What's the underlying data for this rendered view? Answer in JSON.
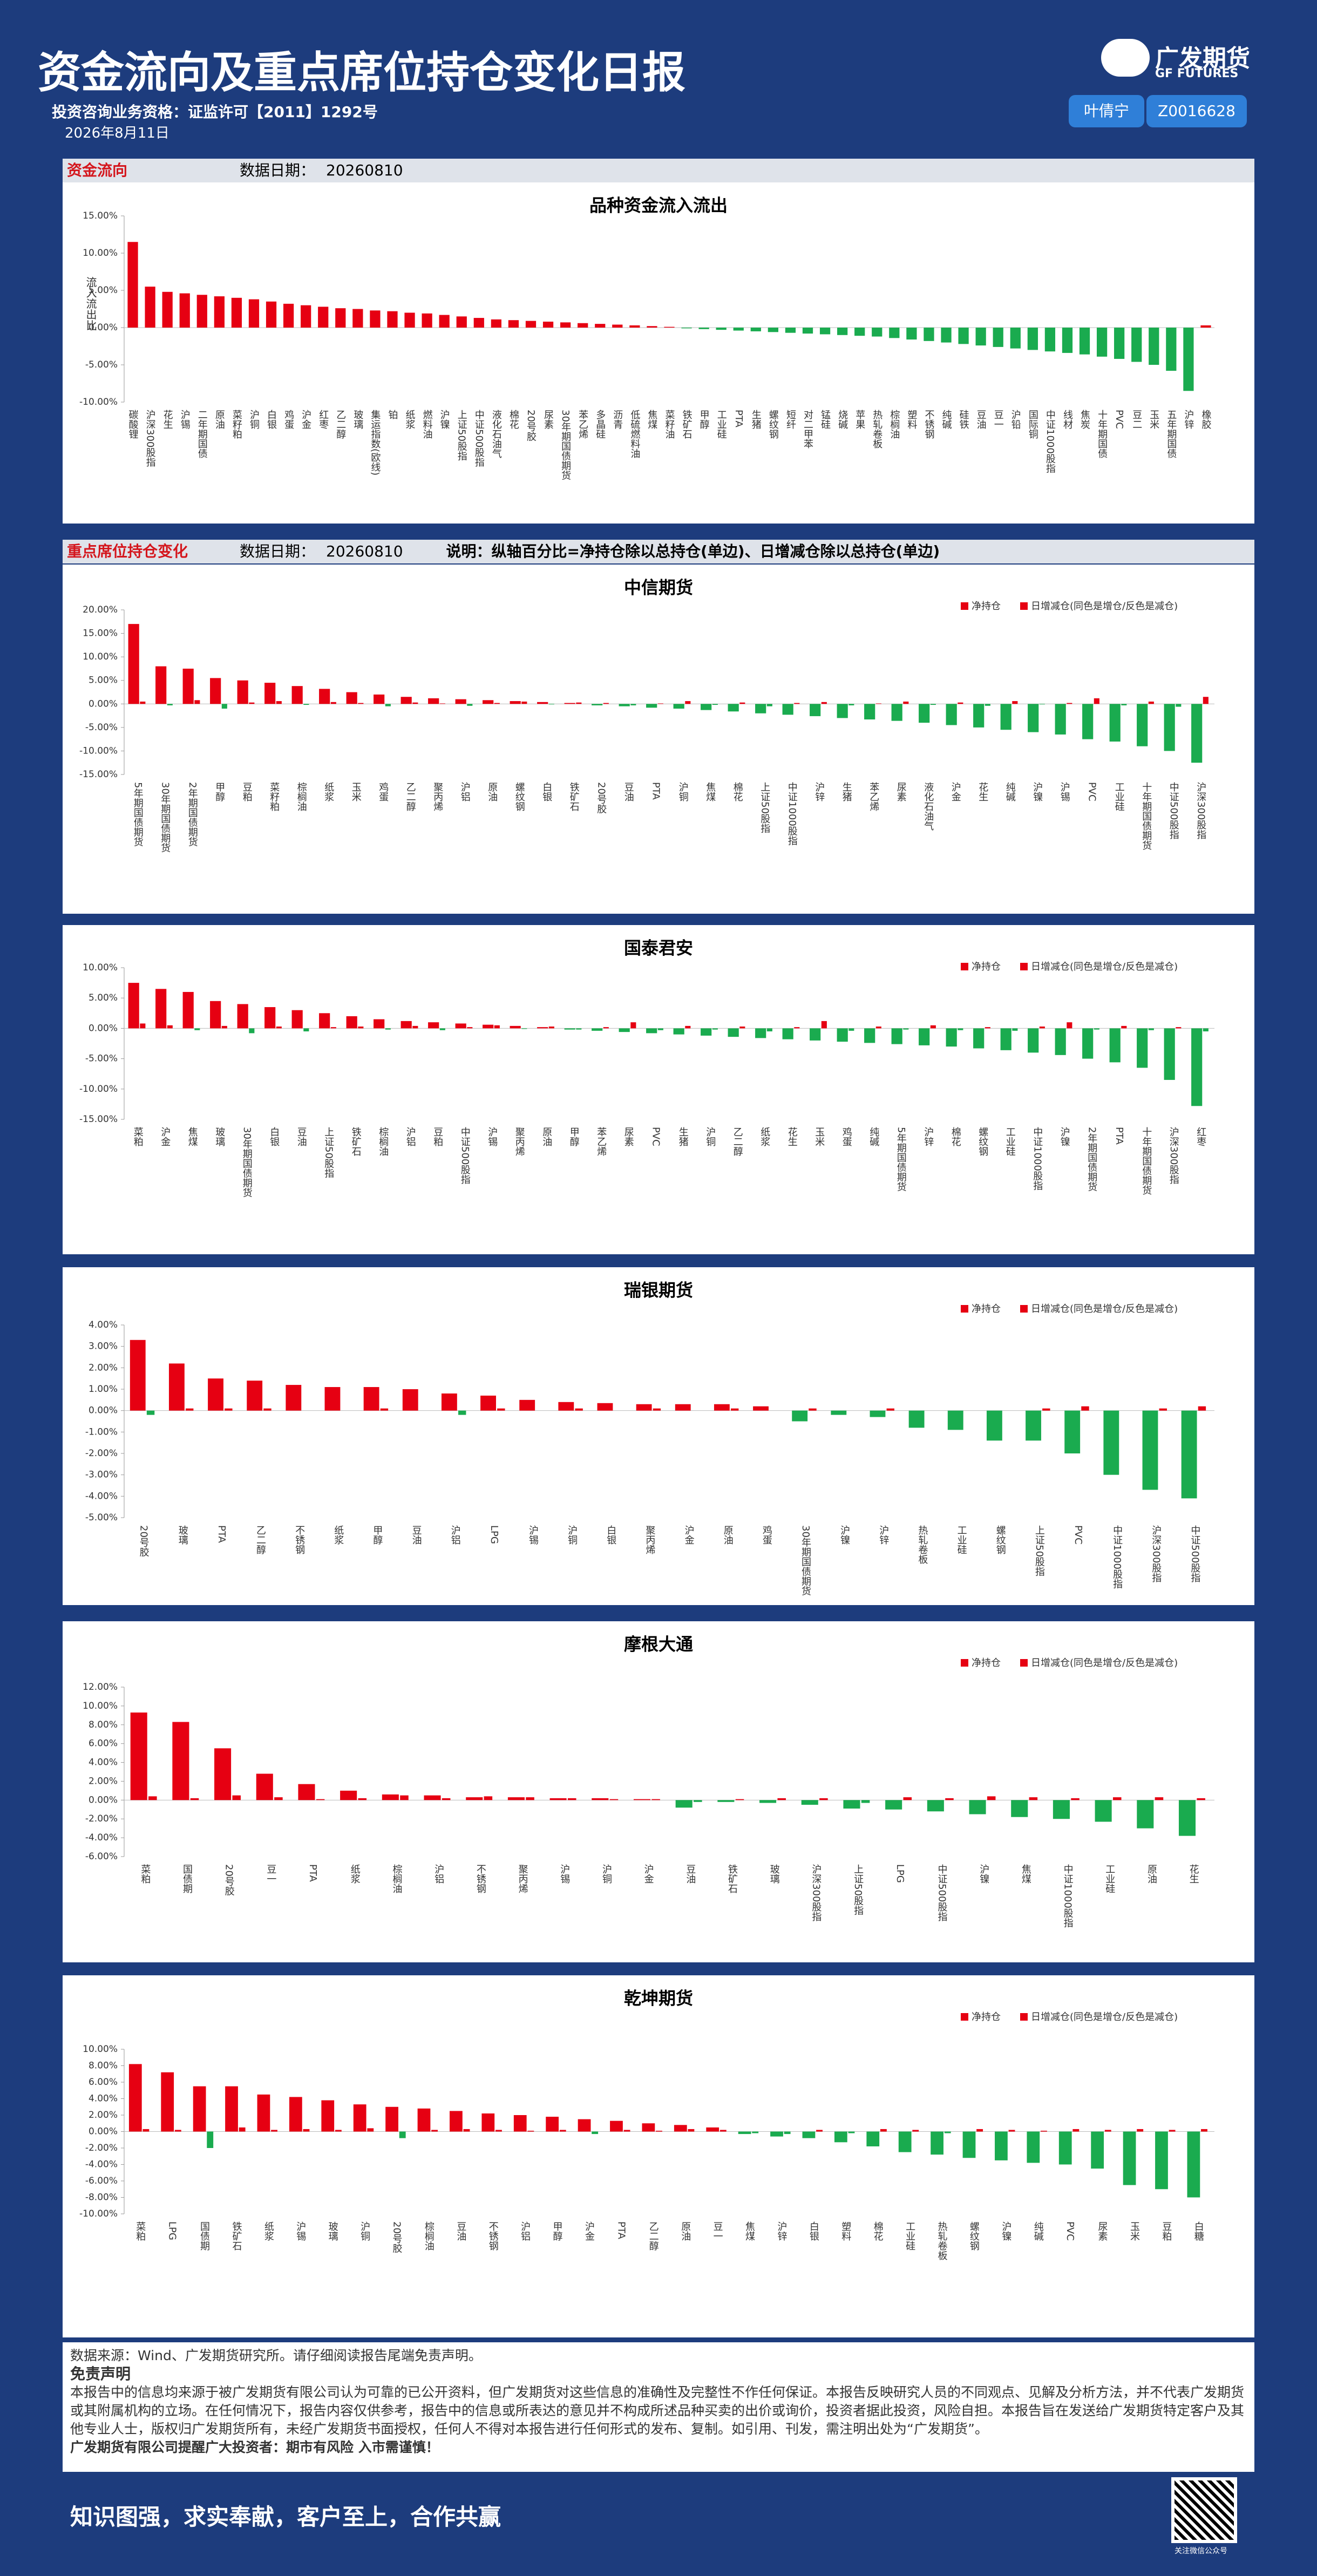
{
  "header": {
    "title": "资金流向及重点席位持仓变化日报",
    "license": "投资咨询业务资格：证监许可【2011】1292号",
    "date": "2026年8月11日",
    "logo_cn": "广发期货",
    "logo_en": "GF FUTURES",
    "analyst": "叶倩宁",
    "analyst_id": "Z0016628"
  },
  "sections": [
    {
      "name": "资金流向",
      "date_label": "数据日期：",
      "date": "20260810"
    },
    {
      "name": "重点席位持仓变化",
      "date_label": "数据日期：",
      "date": "20260810",
      "note": "说明：纵轴百分比=净持仓除以总持仓(单边)、日增减仓除以总持仓(单边)"
    }
  ],
  "chart_data": [
    {
      "type": "bar",
      "title": "品种资金流入流出",
      "ylabel": "流入流出比",
      "positive_color": "#e60012",
      "negative_color": "#1aab4f",
      "categories": [
        "碳酸锂",
        "沪深300股指",
        "花生",
        "沪锡",
        "二年期国债",
        "原油",
        "菜籽粕",
        "沪铜",
        "白银",
        "鸡蛋",
        "沪金",
        "红枣",
        "乙二醇",
        "玻璃",
        "集运指数(欧线)",
        "铂",
        "纸浆",
        "燃料油",
        "沪镍",
        "上证50股指",
        "中证500股指",
        "液化石油气",
        "棉花",
        "20号胶",
        "尿素",
        "30年期国债期货",
        "苯乙烯",
        "多晶硅",
        "沥青",
        "低硫燃料油",
        "焦煤",
        "菜籽油",
        "铁矿石",
        "甲醇",
        "工业硅",
        "PTA",
        "生猪",
        "螺纹钢",
        "短纤",
        "对二甲苯",
        "锰硅",
        "烧碱",
        "苹果",
        "热轧卷板",
        "棕榈油",
        "塑料",
        "不锈钢",
        "纯碱",
        "硅铁",
        "豆油",
        "豆一",
        "沪铅",
        "国际铜",
        "中证1000股指",
        "线材",
        "焦炭",
        "十年期国债",
        "PVC",
        "豆二",
        "玉米",
        "五年期国债",
        "沪锌",
        "橡胶"
      ],
      "values": [
        11.5,
        5.5,
        4.8,
        4.6,
        4.4,
        4.2,
        4.0,
        3.8,
        3.5,
        3.2,
        3.0,
        2.8,
        2.6,
        2.5,
        2.3,
        2.2,
        2.0,
        1.9,
        1.7,
        1.5,
        1.3,
        1.1,
        1.0,
        0.9,
        0.8,
        0.7,
        0.6,
        0.5,
        0.4,
        0.3,
        0.2,
        0.1,
        -0.1,
        -0.2,
        -0.3,
        -0.4,
        -0.5,
        -0.6,
        -0.7,
        -0.8,
        -0.9,
        -1.0,
        -1.1,
        -1.2,
        -1.4,
        -1.6,
        -1.8,
        -2.0,
        -2.2,
        -2.4,
        -2.6,
        -2.8,
        -3.0,
        -3.2,
        -3.4,
        -3.6,
        -3.9,
        -4.2,
        -4.6,
        -5.0,
        -5.8,
        -8.5,
        0.3
      ],
      "ylim": [
        -10,
        15
      ],
      "yticks": [
        {
          "value": -10,
          "label": "-10.00%"
        },
        {
          "value": -5,
          "label": "-5.00%"
        },
        {
          "value": 0,
          "label": "0.00%"
        },
        {
          "value": 5,
          "label": "5.00%"
        },
        {
          "value": 10,
          "label": "10.00%"
        },
        {
          "value": 15,
          "label": "15.00%"
        }
      ]
    },
    {
      "type": "bar",
      "title": "中信期货",
      "positive_color": "#e60012",
      "negative_color": "#1aab4f",
      "categories": [
        "5年期国债期货",
        "30年期国债期货",
        "2年期国债期货",
        "甲醇",
        "豆粕",
        "菜籽粕",
        "棕榈油",
        "纸浆",
        "玉米",
        "鸡蛋",
        "乙二醇",
        "聚丙烯",
        "沪铝",
        "原油",
        "螺纹钢",
        "白银",
        "铁矿石",
        "20号胶",
        "豆油",
        "PTA",
        "沪铜",
        "焦煤",
        "棉花",
        "上证50股指",
        "中证1000股指",
        "沪锌",
        "生猪",
        "苯乙烯",
        "尿素",
        "液化石油气",
        "沪金",
        "花生",
        "纯碱",
        "沪镍",
        "沪锡",
        "PVC",
        "工业硅",
        "十年期国债期货",
        "中证500股指",
        "沪深300股指"
      ],
      "series": [
        {
          "name": "净持仓",
          "color": "#e60012",
          "values": [
            17,
            8,
            7.5,
            5.5,
            5,
            4.5,
            3.8,
            3.2,
            2.5,
            2,
            1.5,
            1.2,
            1,
            0.8,
            0.6,
            0.4,
            0.2,
            -0.3,
            -0.5,
            -0.8,
            -1,
            -1.3,
            -1.6,
            -2,
            -2.3,
            -2.6,
            -3,
            -3.3,
            -3.6,
            -4,
            -4.5,
            -5,
            -5.5,
            -6,
            -6.5,
            -7.5,
            -8,
            -9,
            -10,
            -12.5
          ]
        },
        {
          "name": "日增减仓(同色是增仓/反色是减仓)",
          "color": "#e60012",
          "values": [
            0.5,
            -0.3,
            0.8,
            -1,
            0.3,
            0.6,
            -0.2,
            0.4,
            0.2,
            -0.5,
            0.3,
            0.1,
            -0.4,
            0.2,
            0.5,
            -0.1,
            0.3,
            0.2,
            -0.3,
            0.1,
            0.6,
            -0.2,
            0.3,
            -0.5,
            0.2,
            0.4,
            -0.3,
            0.1,
            0.5,
            -0.2,
            0.3,
            -0.4,
            0.6,
            -0.1,
            0.2,
            1.2,
            -0.3,
            0.5,
            -0.6,
            1.5
          ]
        }
      ],
      "ylim": [
        -15,
        20
      ],
      "yticks": [
        {
          "value": -15,
          "label": "-15.00%"
        },
        {
          "value": -10,
          "label": "-10.00%"
        },
        {
          "value": -5,
          "label": "-5.00%"
        },
        {
          "value": 0,
          "label": "0.00%"
        },
        {
          "value": 5,
          "label": "5.00%"
        },
        {
          "value": 10,
          "label": "10.00%"
        },
        {
          "value": 15,
          "label": "15.00%"
        },
        {
          "value": 20,
          "label": "20.00%"
        }
      ]
    },
    {
      "type": "bar",
      "title": "国泰君安",
      "positive_color": "#e60012",
      "negative_color": "#1aab4f",
      "categories": [
        "菜粕",
        "沪金",
        "焦煤",
        "玻璃",
        "30年期国债期货",
        "白银",
        "豆油",
        "上证50股指",
        "铁矿石",
        "棕榈油",
        "沪铝",
        "豆粕",
        "中证500股指",
        "沪锡",
        "聚丙烯",
        "原油",
        "甲醇",
        "苯乙烯",
        "尿素",
        "PVC",
        "生猪",
        "沪铜",
        "乙二醇",
        "纸浆",
        "花生",
        "玉米",
        "鸡蛋",
        "纯碱",
        "5年期国债期货",
        "沪锌",
        "棉花",
        "螺纹钢",
        "工业硅",
        "中证1000股指",
        "沪镍",
        "2年期国债期货",
        "PTA",
        "十年期国债期货",
        "沪深300股指",
        "红枣"
      ],
      "series": [
        {
          "name": "净持仓",
          "color": "#e60012",
          "values": [
            7.5,
            6.5,
            6,
            4.5,
            4,
            3.5,
            3,
            2.5,
            2,
            1.5,
            1.2,
            1,
            0.8,
            0.6,
            0.4,
            0.2,
            -0.2,
            -0.4,
            -0.6,
            -0.8,
            -1,
            -1.2,
            -1.4,
            -1.6,
            -1.8,
            -2,
            -2.2,
            -2.4,
            -2.6,
            -2.8,
            -3,
            -3.3,
            -3.6,
            -4,
            -4.4,
            -5,
            -5.6,
            -6.5,
            -8.5,
            -12.8
          ]
        },
        {
          "name": "日增减仓(同色是增仓/反色是减仓)",
          "color": "#e60012",
          "values": [
            0.8,
            0.5,
            -0.3,
            0.4,
            -0.8,
            0.3,
            -0.5,
            0.2,
            0.3,
            -0.2,
            0.4,
            -0.3,
            0.2,
            0.5,
            -0.1,
            0.3,
            -0.2,
            0.2,
            1,
            -0.3,
            0.4,
            -0.2,
            0.3,
            -0.5,
            0.2,
            1.2,
            -0.4,
            0.3,
            -0.2,
            0.5,
            -0.3,
            0.2,
            -0.4,
            0.3,
            1,
            -0.2,
            0.4,
            -0.3,
            0.2,
            -0.5
          ]
        }
      ],
      "ylim": [
        -15,
        10
      ],
      "yticks": [
        {
          "value": -15,
          "label": "-15.00%"
        },
        {
          "value": -10,
          "label": "-10.00%"
        },
        {
          "value": -5,
          "label": "-5.00%"
        },
        {
          "value": 0,
          "label": "0.00%"
        },
        {
          "value": 5,
          "label": "5.00%"
        },
        {
          "value": 10,
          "label": "10.00%"
        }
      ]
    },
    {
      "type": "bar",
      "title": "瑞银期货",
      "positive_color": "#e60012",
      "negative_color": "#1aab4f",
      "categories": [
        "20号胶",
        "玻璃",
        "PTA",
        "乙二醇",
        "不锈钢",
        "纸浆",
        "甲醇",
        "豆油",
        "沪铝",
        "LPG",
        "沪锡",
        "沪铜",
        "白银",
        "聚丙烯",
        "沪金",
        "原油",
        "鸡蛋",
        "30年期国债期货",
        "沪镍",
        "沪锌",
        "热轧卷板",
        "工业硅",
        "螺纹钢",
        "上证50股指",
        "PVC",
        "中证1000股指",
        "沪深300股指",
        "中证500股指"
      ],
      "series": [
        {
          "name": "净持仓",
          "color": "#e60012",
          "values": [
            3.3,
            2.2,
            1.5,
            1.4,
            1.2,
            1.1,
            1.1,
            1,
            0.8,
            0.7,
            0.5,
            0.4,
            0.35,
            0.3,
            0.3,
            0.3,
            0.2,
            -0.5,
            -0.2,
            -0.3,
            -0.8,
            -0.9,
            -1.4,
            -1.4,
            -2,
            -3,
            -3.7,
            -4.1
          ]
        },
        {
          "name": "日增减仓(同色是增仓/反色是减仓)",
          "color": "#e60012",
          "values": [
            -0.2,
            0.1,
            0.1,
            0.1,
            0,
            0,
            0.1,
            0,
            -0.2,
            0.1,
            0,
            0.1,
            0,
            0.1,
            0,
            0.1,
            0,
            0.1,
            0,
            0.1,
            0,
            0,
            0,
            0.1,
            0.2,
            0,
            0.1,
            0.2
          ]
        }
      ],
      "ylim": [
        -5,
        4
      ],
      "yticks": [
        {
          "value": -5,
          "label": "-5.00%"
        },
        {
          "value": -4,
          "label": "-4.00%"
        },
        {
          "value": -3,
          "label": "-3.00%"
        },
        {
          "value": -2,
          "label": "-2.00%"
        },
        {
          "value": -1,
          "label": "-1.00%"
        },
        {
          "value": 0,
          "label": "0.00%"
        },
        {
          "value": 1,
          "label": "1.00%"
        },
        {
          "value": 2,
          "label": "2.00%"
        },
        {
          "value": 3,
          "label": "3.00%"
        },
        {
          "value": 4,
          "label": "4.00%"
        }
      ]
    },
    {
      "type": "bar",
      "title": "摩根大通",
      "positive_color": "#e60012",
      "negative_color": "#1aab4f",
      "categories": [
        "菜粕",
        "国债期",
        "20号胶",
        "豆一",
        "PTA",
        "纸浆",
        "棕榈油",
        "沪铝",
        "不锈钢",
        "聚丙烯",
        "沪锡",
        "沪铜",
        "沪金",
        "豆油",
        "铁矿石",
        "玻璃",
        "沪深300股指",
        "上证50股指",
        "LPG",
        "中证500股指",
        "沪镍",
        "焦煤",
        "中证1000股指",
        "工业硅",
        "原油",
        "花生"
      ],
      "series": [
        {
          "name": "净持仓",
          "color": "#e60012",
          "values": [
            9.3,
            8.3,
            5.5,
            2.8,
            1.7,
            1,
            0.6,
            0.5,
            0.3,
            0.3,
            0.2,
            0.2,
            0.1,
            -0.8,
            -0.2,
            -0.3,
            -0.5,
            -0.9,
            -1,
            -1.2,
            -1.5,
            -1.8,
            -2,
            -2.3,
            -3,
            -3.8
          ]
        },
        {
          "name": "日增减仓(同色是增仓/反色是减仓)",
          "color": "#e60012",
          "values": [
            0.4,
            0.2,
            0.5,
            0.3,
            0.1,
            0.2,
            0.5,
            0.2,
            0.4,
            0.3,
            0.2,
            0.1,
            0.1,
            -0.2,
            0.1,
            0.2,
            0.2,
            -0.3,
            0.3,
            0.2,
            0.4,
            0.3,
            0.2,
            0.3,
            0.3,
            0.2
          ]
        }
      ],
      "ylim": [
        -6,
        12
      ],
      "yticks": [
        {
          "value": -6,
          "label": "-6.00%"
        },
        {
          "value": -4,
          "label": "-4.00%"
        },
        {
          "value": -2,
          "label": "-2.00%"
        },
        {
          "value": 0,
          "label": "0.00%"
        },
        {
          "value": 2,
          "label": "2.00%"
        },
        {
          "value": 4,
          "label": "4.00%"
        },
        {
          "value": 6,
          "label": "6.00%"
        },
        {
          "value": 8,
          "label": "8.00%"
        },
        {
          "value": 10,
          "label": "10.00%"
        },
        {
          "value": 12,
          "label": "12.00%"
        }
      ]
    },
    {
      "type": "bar",
      "title": "乾坤期货",
      "positive_color": "#e60012",
      "negative_color": "#1aab4f",
      "categories": [
        "菜粕",
        "LPG",
        "国债期",
        "铁矿石",
        "纸浆",
        "沪锡",
        "玻璃",
        "沪铜",
        "20号胶",
        "棕榈油",
        "豆油",
        "不锈钢",
        "沪铝",
        "甲醇",
        "沪金",
        "PTA",
        "乙二醇",
        "原油",
        "豆一",
        "焦煤",
        "沪锌",
        "白银",
        "塑料",
        "棉花",
        "工业硅",
        "热轧卷板",
        "螺纹钢",
        "沪镍",
        "纯碱",
        "PVC",
        "尿素",
        "玉米",
        "豆粕",
        "白糖"
      ],
      "series": [
        {
          "name": "净持仓",
          "color": "#e60012",
          "values": [
            8.2,
            7.2,
            5.5,
            5.5,
            4.5,
            4.2,
            3.8,
            3.3,
            3,
            2.8,
            2.5,
            2.2,
            2,
            1.8,
            1.5,
            1.3,
            1,
            0.8,
            0.5,
            -0.3,
            -0.6,
            -0.8,
            -1.3,
            -1.8,
            -2.5,
            -2.8,
            -3.2,
            -3.5,
            -3.8,
            -4,
            -4.5,
            -6.5,
            -7,
            -8
          ]
        },
        {
          "name": "日增减仓(同色是增仓/反色是减仓)",
          "color": "#e60012",
          "values": [
            0.3,
            0.2,
            -2,
            0.5,
            0.2,
            0.3,
            0.2,
            0.4,
            -0.8,
            0.2,
            0.3,
            0.2,
            0.1,
            0.2,
            -0.3,
            0.2,
            0.1,
            0.3,
            0.2,
            -0.2,
            -0.3,
            0.2,
            -0.2,
            0.3,
            0.2,
            -0.2,
            0.3,
            0.2,
            0.1,
            0.3,
            0.2,
            0.3,
            0.2,
            0.3
          ]
        }
      ],
      "ylim": [
        -10,
        10
      ],
      "yticks": [
        {
          "value": -10,
          "label": "-10.00%"
        },
        {
          "value": -8,
          "label": "-8.00%"
        },
        {
          "value": -6,
          "label": "-6.00%"
        },
        {
          "value": -4,
          "label": "-4.00%"
        },
        {
          "value": -2,
          "label": "-2.00%"
        },
        {
          "value": 0,
          "label": "0.00%"
        },
        {
          "value": 2,
          "label": "2.00%"
        },
        {
          "value": 4,
          "label": "4.00%"
        },
        {
          "value": 6,
          "label": "6.00%"
        },
        {
          "value": 8,
          "label": "8.00%"
        },
        {
          "value": 10,
          "label": "10.00%"
        }
      ]
    }
  ],
  "footer": {
    "source": "数据来源：Wind、广发期货研究所。请仔细阅读报告尾端免责声明。",
    "disclaimer_title": "免责声明",
    "disclaimer": "本报告中的信息均来源于被广发期货有限公司认为可靠的已公开资料，但广发期货对这些信息的准确性及完整性不作任何保证。本报告反映研究人员的不同观点、见解及分析方法，并不代表广发期货或其附属机构的立场。在任何情况下，报告内容仅供参考，报告中的信息或所表达的意见并不构成所述品种买卖的出价或询价，投资者据此投资，风险自担。本报告旨在发送给广发期货特定客户及其他专业人士，版权归广发期货所有，未经广发期货书面授权，任何人不得对本报告进行任何形式的发布、复制。如引用、刊发，需注明出处为“广发期货”。",
    "reminder": "广发期货有限公司提醒广大投资者：期市有风险 入市需谨慎！",
    "slogan": "知识图强，求实奉献，客户至上，合作共赢",
    "qr_caption": "关注微信公众号"
  }
}
